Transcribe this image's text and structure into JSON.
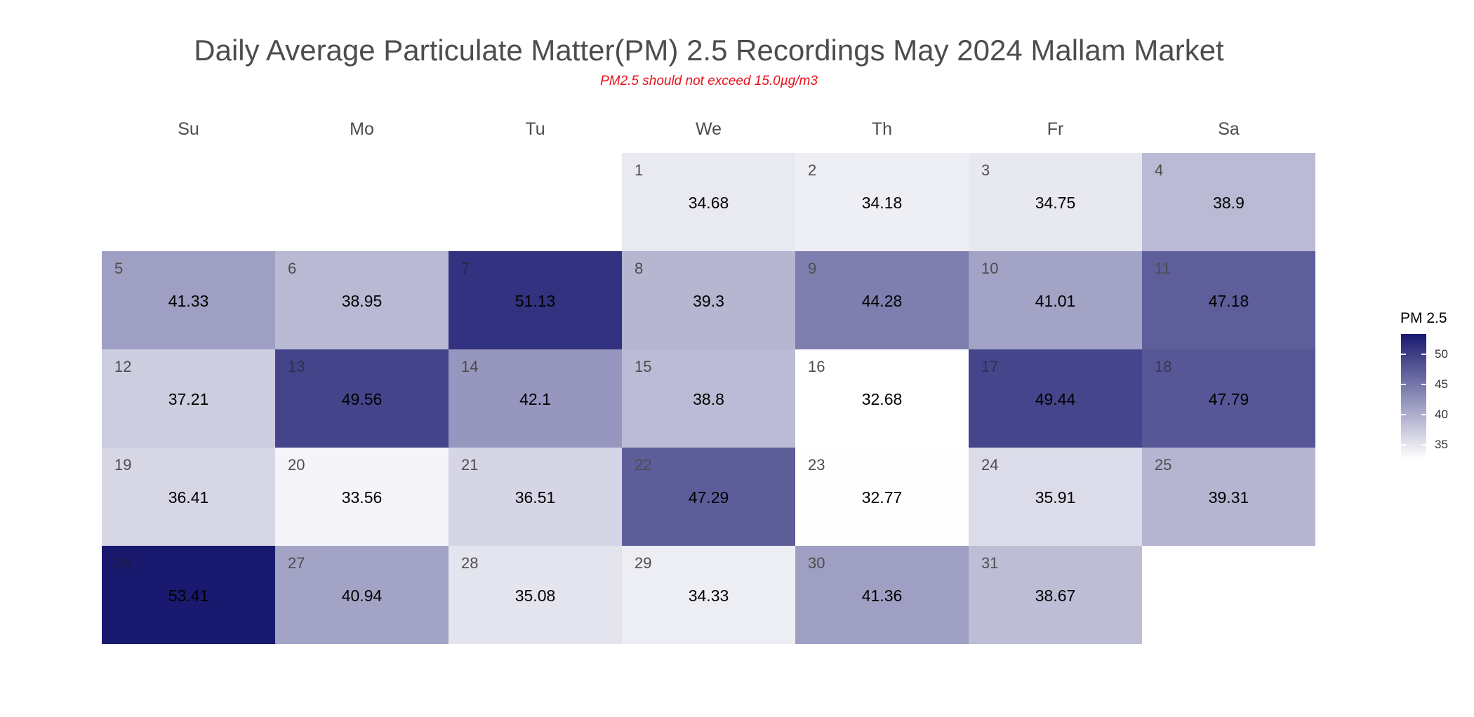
{
  "chart_data": {
    "type": "heatmap",
    "title": "Daily Average Particulate Matter(PM) 2.5 Recordings May 2024 Mallam Market",
    "subtitle": "PM2.5 should not exceed 15.0µg/m3",
    "weekdays": [
      "Su",
      "Mo",
      "Tu",
      "We",
      "Th",
      "Fr",
      "Sa"
    ],
    "first_weekday_index": 3,
    "days": [
      1,
      2,
      3,
      4,
      5,
      6,
      7,
      8,
      9,
      10,
      11,
      12,
      13,
      14,
      15,
      16,
      17,
      18,
      19,
      20,
      21,
      22,
      23,
      24,
      25,
      26,
      27,
      28,
      29,
      30,
      31
    ],
    "values": [
      "34.68",
      "34.18",
      "34.75",
      "38.9",
      "41.33",
      "38.95",
      "51.13",
      "39.3",
      "44.28",
      "41.01",
      "47.18",
      "37.21",
      "49.56",
      "42.1",
      "38.8",
      "32.68",
      "49.44",
      "47.79",
      "36.41",
      "33.56",
      "36.51",
      "47.29",
      "32.77",
      "35.91",
      "39.31",
      "53.41",
      "40.94",
      "35.08",
      "34.33",
      "41.36",
      "38.67"
    ],
    "legend": {
      "title": "PM 2.5",
      "ticks": [
        50,
        45,
        40,
        35
      ],
      "range": [
        32.68,
        53.41
      ]
    },
    "colors": {
      "low": "#ffffff",
      "high": "#191970"
    }
  }
}
